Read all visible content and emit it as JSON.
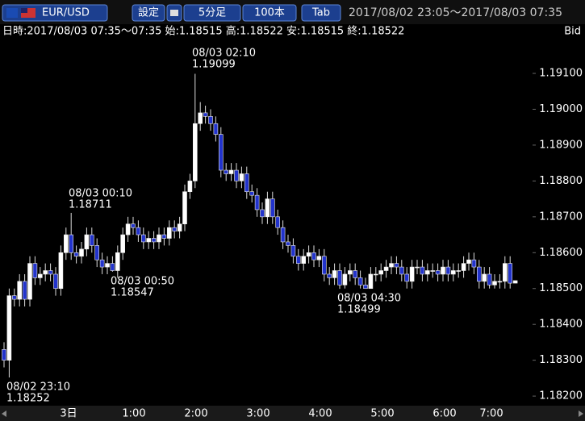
{
  "toolbar": {
    "symbol": "EUR/USD",
    "buttons": [
      "設定",
      "5分足",
      "100本",
      "Tab"
    ],
    "range": "2017/08/02 23:05～2017/08/03 07:35"
  },
  "info": {
    "text": "日時:2017/08/03 07:35～07:35 始:1.18515 高:1.18522 安:1.18515 終:1.18522",
    "side": "Bid"
  },
  "chart_data": {
    "type": "candlestick",
    "up_color": "#ffffff",
    "down_color": "#2233cc",
    "ylim": [
      1.1818,
      1.1919
    ],
    "yticks": [
      {
        "value": 1.191,
        "label": "1.19100"
      },
      {
        "value": 1.19,
        "label": "1.19000"
      },
      {
        "value": 1.189,
        "label": "1.18900"
      },
      {
        "value": 1.188,
        "label": "1.18800"
      },
      {
        "value": 1.187,
        "label": "1.18700"
      },
      {
        "value": 1.186,
        "label": "1.18600"
      },
      {
        "value": 1.185,
        "label": "1.18500"
      },
      {
        "value": 1.184,
        "label": "1.18400"
      },
      {
        "value": 1.183,
        "label": "1.18300"
      },
      {
        "value": 1.182,
        "label": "1.18200"
      }
    ],
    "xtick_labels": [
      "3日",
      "1:00",
      "2:00",
      "3:00",
      "4:00",
      "5:00",
      "6:00",
      "7:00"
    ],
    "annotations": [
      {
        "time": "08/02 23:10",
        "price": 1.18252
      },
      {
        "time": "08/03 00:10",
        "price": 1.18711
      },
      {
        "time": "08/03 00:50",
        "price": 1.18547
      },
      {
        "time": "08/03 02:10",
        "price": 1.19099
      },
      {
        "time": "08/03 04:30",
        "price": 1.18499
      }
    ],
    "open": [
      1.1833,
      1.183,
      1.1848,
      1.1847,
      1.1852,
      1.1847,
      1.1857,
      1.1853,
      1.1854,
      1.1855,
      1.1854,
      1.185,
      1.186,
      1.1865,
      1.186,
      1.1859,
      1.1861,
      1.1865,
      1.1862,
      1.1858,
      1.1856,
      1.1857,
      1.1855,
      1.186,
      1.1865,
      1.1868,
      1.1867,
      1.1865,
      1.1863,
      1.1864,
      1.1863,
      1.1865,
      1.1864,
      1.1867,
      1.1866,
      1.1868,
      1.1877,
      1.188,
      1.1896,
      1.1899,
      1.1898,
      1.1896,
      1.1893,
      1.1883,
      1.1882,
      1.1883,
      1.188,
      1.1882,
      1.1877,
      1.1876,
      1.1872,
      1.187,
      1.1875,
      1.187,
      1.1867,
      1.1863,
      1.1862,
      1.1859,
      1.1857,
      1.1859,
      1.186,
      1.1858,
      1.1859,
      1.1854,
      1.1853,
      1.1855,
      1.1851,
      1.1854,
      1.1855,
      1.1853,
      1.1851,
      1.185,
      1.1854,
      1.1854,
      1.1855,
      1.1856,
      1.1857,
      1.1856,
      1.1854,
      1.1852,
      1.1856,
      1.1856,
      1.1854,
      1.1855,
      1.1855,
      1.1854,
      1.1856,
      1.1854,
      1.1855,
      1.1855,
      1.1857,
      1.1858,
      1.1856,
      1.1852,
      1.1854,
      1.1851,
      1.1852,
      1.1852,
      1.1857,
      1.18515
    ],
    "high": [
      1.1835,
      1.185,
      1.185,
      1.1854,
      1.1854,
      1.1859,
      1.1859,
      1.1856,
      1.1857,
      1.1857,
      1.1856,
      1.1862,
      1.1867,
      1.18711,
      1.1862,
      1.1863,
      1.1867,
      1.1867,
      1.1864,
      1.186,
      1.1859,
      1.1859,
      1.1862,
      1.1867,
      1.187,
      1.187,
      1.1869,
      1.1867,
      1.1866,
      1.1866,
      1.1867,
      1.1867,
      1.1869,
      1.1869,
      1.187,
      1.1879,
      1.1882,
      1.19099,
      1.1902,
      1.1901,
      1.19,
      1.1898,
      1.1895,
      1.1885,
      1.1885,
      1.1885,
      1.1884,
      1.1884,
      1.1879,
      1.1878,
      1.1874,
      1.1877,
      1.1877,
      1.1872,
      1.1869,
      1.1865,
      1.1864,
      1.1861,
      1.1861,
      1.1862,
      1.1862,
      1.1861,
      1.1861,
      1.1856,
      1.1857,
      1.1857,
      1.1856,
      1.1857,
      1.1857,
      1.1855,
      1.1853,
      1.1856,
      1.1856,
      1.1857,
      1.1858,
      1.1859,
      1.1859,
      1.1858,
      1.1856,
      1.1858,
      1.1858,
      1.1858,
      1.1857,
      1.1857,
      1.1857,
      1.1858,
      1.1858,
      1.1857,
      1.1857,
      1.1859,
      1.186,
      1.186,
      1.1858,
      1.1856,
      1.1856,
      1.1854,
      1.1854,
      1.1859,
      1.1859,
      1.18522
    ],
    "low": [
      1.1828,
      1.18252,
      1.1845,
      1.1845,
      1.1845,
      1.1845,
      1.1851,
      1.1851,
      1.1852,
      1.1852,
      1.1848,
      1.1848,
      1.1858,
      1.1858,
      1.1857,
      1.1857,
      1.1859,
      1.186,
      1.1856,
      1.1854,
      1.1854,
      1.18547,
      1.1853,
      1.1858,
      1.1863,
      1.1865,
      1.1863,
      1.1861,
      1.1861,
      1.1861,
      1.1861,
      1.1862,
      1.1862,
      1.1864,
      1.1864,
      1.1866,
      1.1875,
      1.1878,
      1.1894,
      1.1896,
      1.1894,
      1.1891,
      1.1881,
      1.188,
      1.188,
      1.1878,
      1.1878,
      1.1875,
      1.1874,
      1.187,
      1.1868,
      1.1868,
      1.1868,
      1.1865,
      1.1861,
      1.186,
      1.1857,
      1.1855,
      1.1855,
      1.1857,
      1.1856,
      1.1856,
      1.1852,
      1.1851,
      1.1851,
      1.18499,
      1.185,
      1.1852,
      1.1851,
      1.185,
      1.185,
      1.185,
      1.1852,
      1.1852,
      1.1853,
      1.1854,
      1.1854,
      1.1852,
      1.185,
      1.185,
      1.1854,
      1.1852,
      1.1852,
      1.1853,
      1.1852,
      1.1852,
      1.1852,
      1.1852,
      1.1853,
      1.1853,
      1.1855,
      1.1854,
      1.185,
      1.185,
      1.185,
      1.185,
      1.185,
      1.185,
      1.185,
      1.18515
    ],
    "close": [
      1.183,
      1.1848,
      1.1847,
      1.1852,
      1.1847,
      1.1857,
      1.1853,
      1.1854,
      1.1855,
      1.1854,
      1.185,
      1.186,
      1.1865,
      1.186,
      1.1859,
      1.1861,
      1.1865,
      1.1862,
      1.1858,
      1.1856,
      1.1857,
      1.1855,
      1.186,
      1.1865,
      1.1868,
      1.1867,
      1.1865,
      1.1863,
      1.1864,
      1.1863,
      1.1865,
      1.1864,
      1.1867,
      1.1866,
      1.1868,
      1.1877,
      1.188,
      1.1896,
      1.1899,
      1.1898,
      1.1896,
      1.1893,
      1.1883,
      1.1882,
      1.1883,
      1.188,
      1.1882,
      1.1877,
      1.1876,
      1.1872,
      1.187,
      1.1875,
      1.187,
      1.1867,
      1.1863,
      1.1862,
      1.1859,
      1.1857,
      1.1859,
      1.186,
      1.1858,
      1.1859,
      1.1854,
      1.1853,
      1.1855,
      1.1851,
      1.1854,
      1.1855,
      1.1853,
      1.1851,
      1.185,
      1.1854,
      1.1854,
      1.1855,
      1.1856,
      1.1857,
      1.1856,
      1.1854,
      1.1852,
      1.1856,
      1.1856,
      1.1854,
      1.1855,
      1.1855,
      1.1854,
      1.1856,
      1.1854,
      1.1855,
      1.1855,
      1.1857,
      1.1858,
      1.1856,
      1.1852,
      1.1854,
      1.1851,
      1.1852,
      1.1852,
      1.1857,
      1.18515,
      1.18522
    ]
  }
}
